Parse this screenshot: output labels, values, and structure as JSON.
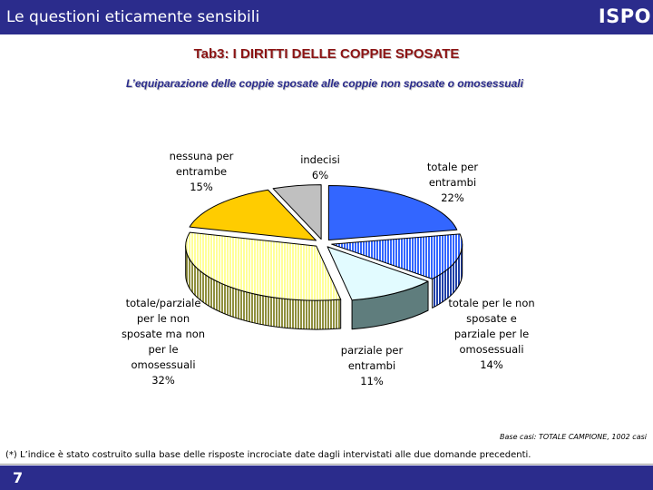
{
  "header": {
    "title": "Le questioni eticamente sensibili",
    "brand": "ISPO"
  },
  "chart_data": {
    "type": "pie",
    "title": "Tab3: I DIRITTI DELLE COPPIE SPOSATE",
    "subtitle": "L’equiparazione delle coppie sposate alle coppie non sposate o omosessuali",
    "slices": [
      {
        "label": [
          "totale per",
          "entrambi",
          "22%"
        ],
        "value": 22,
        "color": "#3366ff",
        "side": "#1f3fa8",
        "pattern": false
      },
      {
        "label": [
          "totale per le non",
          "sposate e",
          "parziale per le",
          "omosessuali",
          "14%"
        ],
        "value": 14,
        "color": "#3366ff",
        "side": "#1f3fa8",
        "pattern": true
      },
      {
        "label": [
          "parziale per",
          "entrambi",
          "11%"
        ],
        "value": 11,
        "color": "#e2fbff",
        "side": "#5f7d7d",
        "pattern": false
      },
      {
        "label": [
          "totale/parziale",
          "per le non",
          "sposate ma non",
          "per le",
          "omosessuali",
          "32%"
        ],
        "value": 32,
        "color": "#ffff99",
        "side": "#8f8f3e",
        "pattern": true
      },
      {
        "label": [
          "nessuna per",
          "entrambe",
          "15%"
        ],
        "value": 15,
        "color": "#ffcc00",
        "side": "#9a7a00",
        "pattern": false
      },
      {
        "label": [
          "indecisi",
          "6%"
        ],
        "value": 6,
        "color": "#c0c0c0",
        "side": "#7a7a7a",
        "pattern": false
      }
    ]
  },
  "note": "Base casi: TOTALE CAMPIONE, 1002 casi",
  "footnote": "(*) L’indice è stato costruito sulla base delle risposte incrociate date dagli intervistati alle due domande precedenti.",
  "page_number": "7"
}
